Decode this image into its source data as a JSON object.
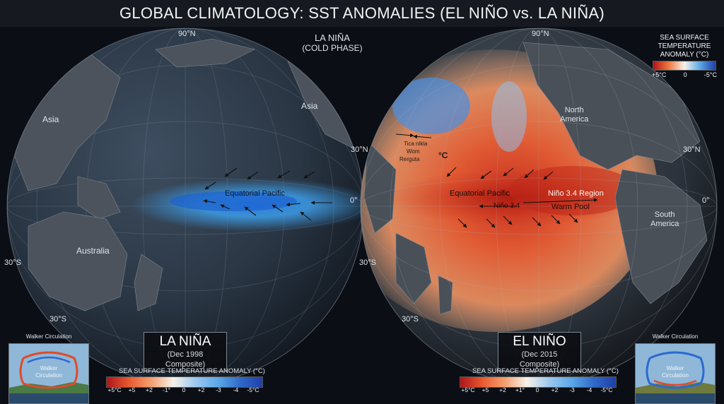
{
  "title": "GLOBAL CLIMATOLOGY: SST ANOMALIES (EL NIÑO vs. LA NIÑA)",
  "la_nina": {
    "phase_title": "LA NIÑA",
    "phase_subtitle": "(COLD PHASE)",
    "card_name": "LA NIÑA",
    "card_date": "(Dec 1998 Composite)",
    "label_asia_left": "Asia",
    "label_asia_right": "Asia",
    "label_australia": "Australia",
    "label_equatorial": "Equatorial Pacific",
    "lat_90n": "90°N",
    "lat_0": "0°",
    "lat_30s_left": "30°S",
    "lat_30s_bottom": "30°S",
    "legend_title": "SEA SURFACE TEMPERATURE ANOMALY (°C)",
    "legend_ticks": [
      "+5°C",
      "+5",
      "+2",
      "-1°",
      "0",
      "+2",
      "-3",
      "-4",
      "-5°C"
    ]
  },
  "el_nino": {
    "card_name": "EL NIÑO",
    "card_date": "(Dec 2015 Composite)",
    "label_north_america": "North\nAmerica",
    "label_south_america": "South\nAmerica",
    "label_equatorial": "Equatorial Pacific",
    "label_nino34_region": "Niño 3.4 Region",
    "label_nino34": "Niño 3.4",
    "label_warm_pool": "Warm Pool",
    "lat_90n": "90°N",
    "lat_30n": "30°N",
    "lat_30n_right": "30°N",
    "lat_0": "0°",
    "lat_30s": "30°S",
    "lat_30s_bottom": "30°S",
    "annotation_lines": [
      "Tica nikla",
      "Wom",
      "Rerguta"
    ],
    "annotation_value": "°C",
    "legend_title": "SEA SURFACE TEMPERATURE ANOMALY (°C)",
    "legend_ticks": [
      "+5°C",
      "+5",
      "+2",
      "+1°",
      "0",
      "+2",
      "-3",
      "-4",
      "-5°C"
    ]
  },
  "top_legend": {
    "title_line1": "SEA SURFACE",
    "title_line2": "TEMPERATURE",
    "title_line3": "ANOMALY (°C)",
    "ticks": [
      "+5°C",
      "0",
      "-5°C"
    ]
  },
  "walker_left": {
    "title": "Walker Circulation",
    "label": "Walker\nCirculation"
  },
  "walker_right": {
    "title": "Walker Circulation",
    "label": "Walker\nCirculation"
  },
  "colors": {
    "warm": "#d8432a",
    "cold": "#2a7fe0",
    "ocean": "#2b3a4a",
    "land": "#4a4f57"
  }
}
